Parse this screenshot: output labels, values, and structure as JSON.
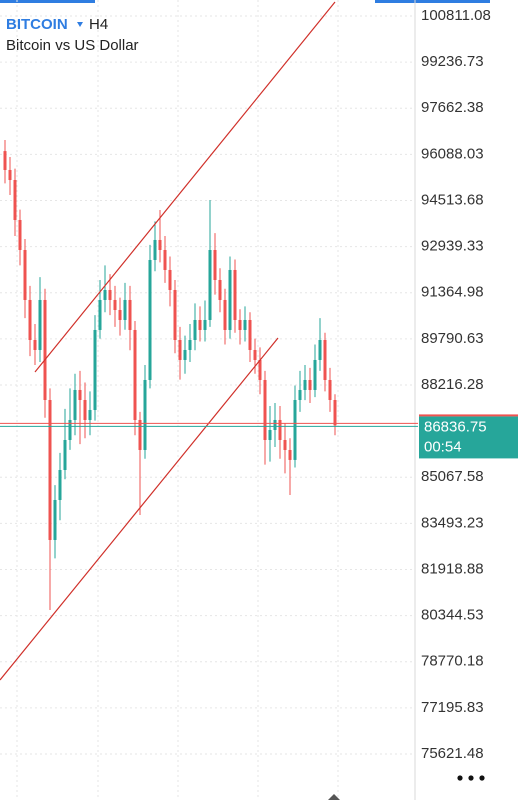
{
  "chart_data": {
    "type": "candlestick",
    "title": "BITCOIN",
    "timeframe": "H4",
    "subtitle": "Bitcoin vs US Dollar",
    "ylim": [
      74051,
      101357
    ],
    "yticks": [
      100811.08,
      99236.73,
      97662.38,
      96088.03,
      94513.68,
      92939.33,
      91364.98,
      89790.63,
      88216.28,
      85067.58,
      83493.23,
      81918.88,
      80344.53,
      78770.18,
      77195.83,
      75621.48
    ],
    "grid": true,
    "up_color": "#26a69a",
    "down_color": "#ef5350",
    "open": [
      96200,
      95555,
      95213,
      93848,
      92824,
      91118,
      89752,
      89411,
      91118,
      87704,
      82926,
      84291,
      85315,
      86339,
      87022,
      88046,
      87704,
      87022,
      87363,
      90094,
      91118,
      91459,
      91118,
      90776,
      90435,
      91118,
      90094,
      87022,
      85998,
      88387,
      92483,
      93166,
      92824,
      92142,
      91459,
      89752,
      89070,
      89411,
      89752,
      90435,
      90094,
      90435,
      92824,
      91800,
      91118,
      90094,
      92142,
      90435,
      90094,
      90435,
      89411,
      89070,
      88387,
      86339,
      86680,
      87022,
      86339,
      85998,
      85658,
      87704,
      88046,
      88387,
      88046,
      89070,
      89752,
      88387,
      87704
    ],
    "high": [
      96580,
      96000,
      95600,
      94200,
      93200,
      91600,
      90300,
      91900,
      91500,
      88100,
      84800,
      85900,
      87400,
      88100,
      88600,
      88700,
      88300,
      88000,
      90600,
      91800,
      92300,
      92000,
      91600,
      91200,
      91700,
      91600,
      90400,
      87300,
      88900,
      93000,
      93800,
      94190,
      93300,
      92600,
      91800,
      90200,
      89900,
      90300,
      91000,
      90900,
      91100,
      94530,
      93400,
      92200,
      91500,
      92600,
      92500,
      90800,
      90900,
      90700,
      89800,
      89500,
      88700,
      87500,
      87600,
      87500,
      86900,
      86400,
      88200,
      88700,
      88900,
      88800,
      89600,
      90500,
      90000,
      88800,
      87900
    ],
    "low": [
      95100,
      94700,
      93300,
      92300,
      90500,
      89200,
      88900,
      89000,
      87100,
      80537,
      82300,
      83600,
      85000,
      86000,
      86500,
      86200,
      86400,
      86500,
      87000,
      89800,
      90700,
      90600,
      90200,
      89900,
      90100,
      89400,
      86500,
      83780,
      85700,
      88100,
      92100,
      92400,
      91700,
      90900,
      89300,
      88400,
      88600,
      89000,
      89400,
      89700,
      89700,
      90200,
      91300,
      90700,
      89600,
      89800,
      90000,
      89600,
      89700,
      89000,
      88600,
      87900,
      85500,
      85600,
      86100,
      85700,
      85200,
      84462,
      85400,
      87300,
      87700,
      87600,
      87800,
      88700,
      88000,
      87300,
      86500
    ],
    "close": [
      95555,
      95213,
      93848,
      92824,
      91118,
      89752,
      89411,
      91118,
      87704,
      82926,
      84291,
      85315,
      86339,
      87022,
      88046,
      87704,
      87022,
      87363,
      90094,
      91118,
      91459,
      91118,
      90776,
      90435,
      91118,
      90094,
      87022,
      85998,
      88387,
      92483,
      93166,
      92824,
      92142,
      91459,
      89752,
      89070,
      89411,
      89752,
      90435,
      90094,
      90435,
      92824,
      91800,
      91118,
      90094,
      92142,
      90435,
      90094,
      90435,
      89411,
      89070,
      88387,
      86339,
      86680,
      87022,
      86339,
      85998,
      85658,
      87704,
      88046,
      88387,
      88046,
      89070,
      89752,
      88387,
      87704,
      86836.75
    ],
    "countdown": "00:54"
  }
}
